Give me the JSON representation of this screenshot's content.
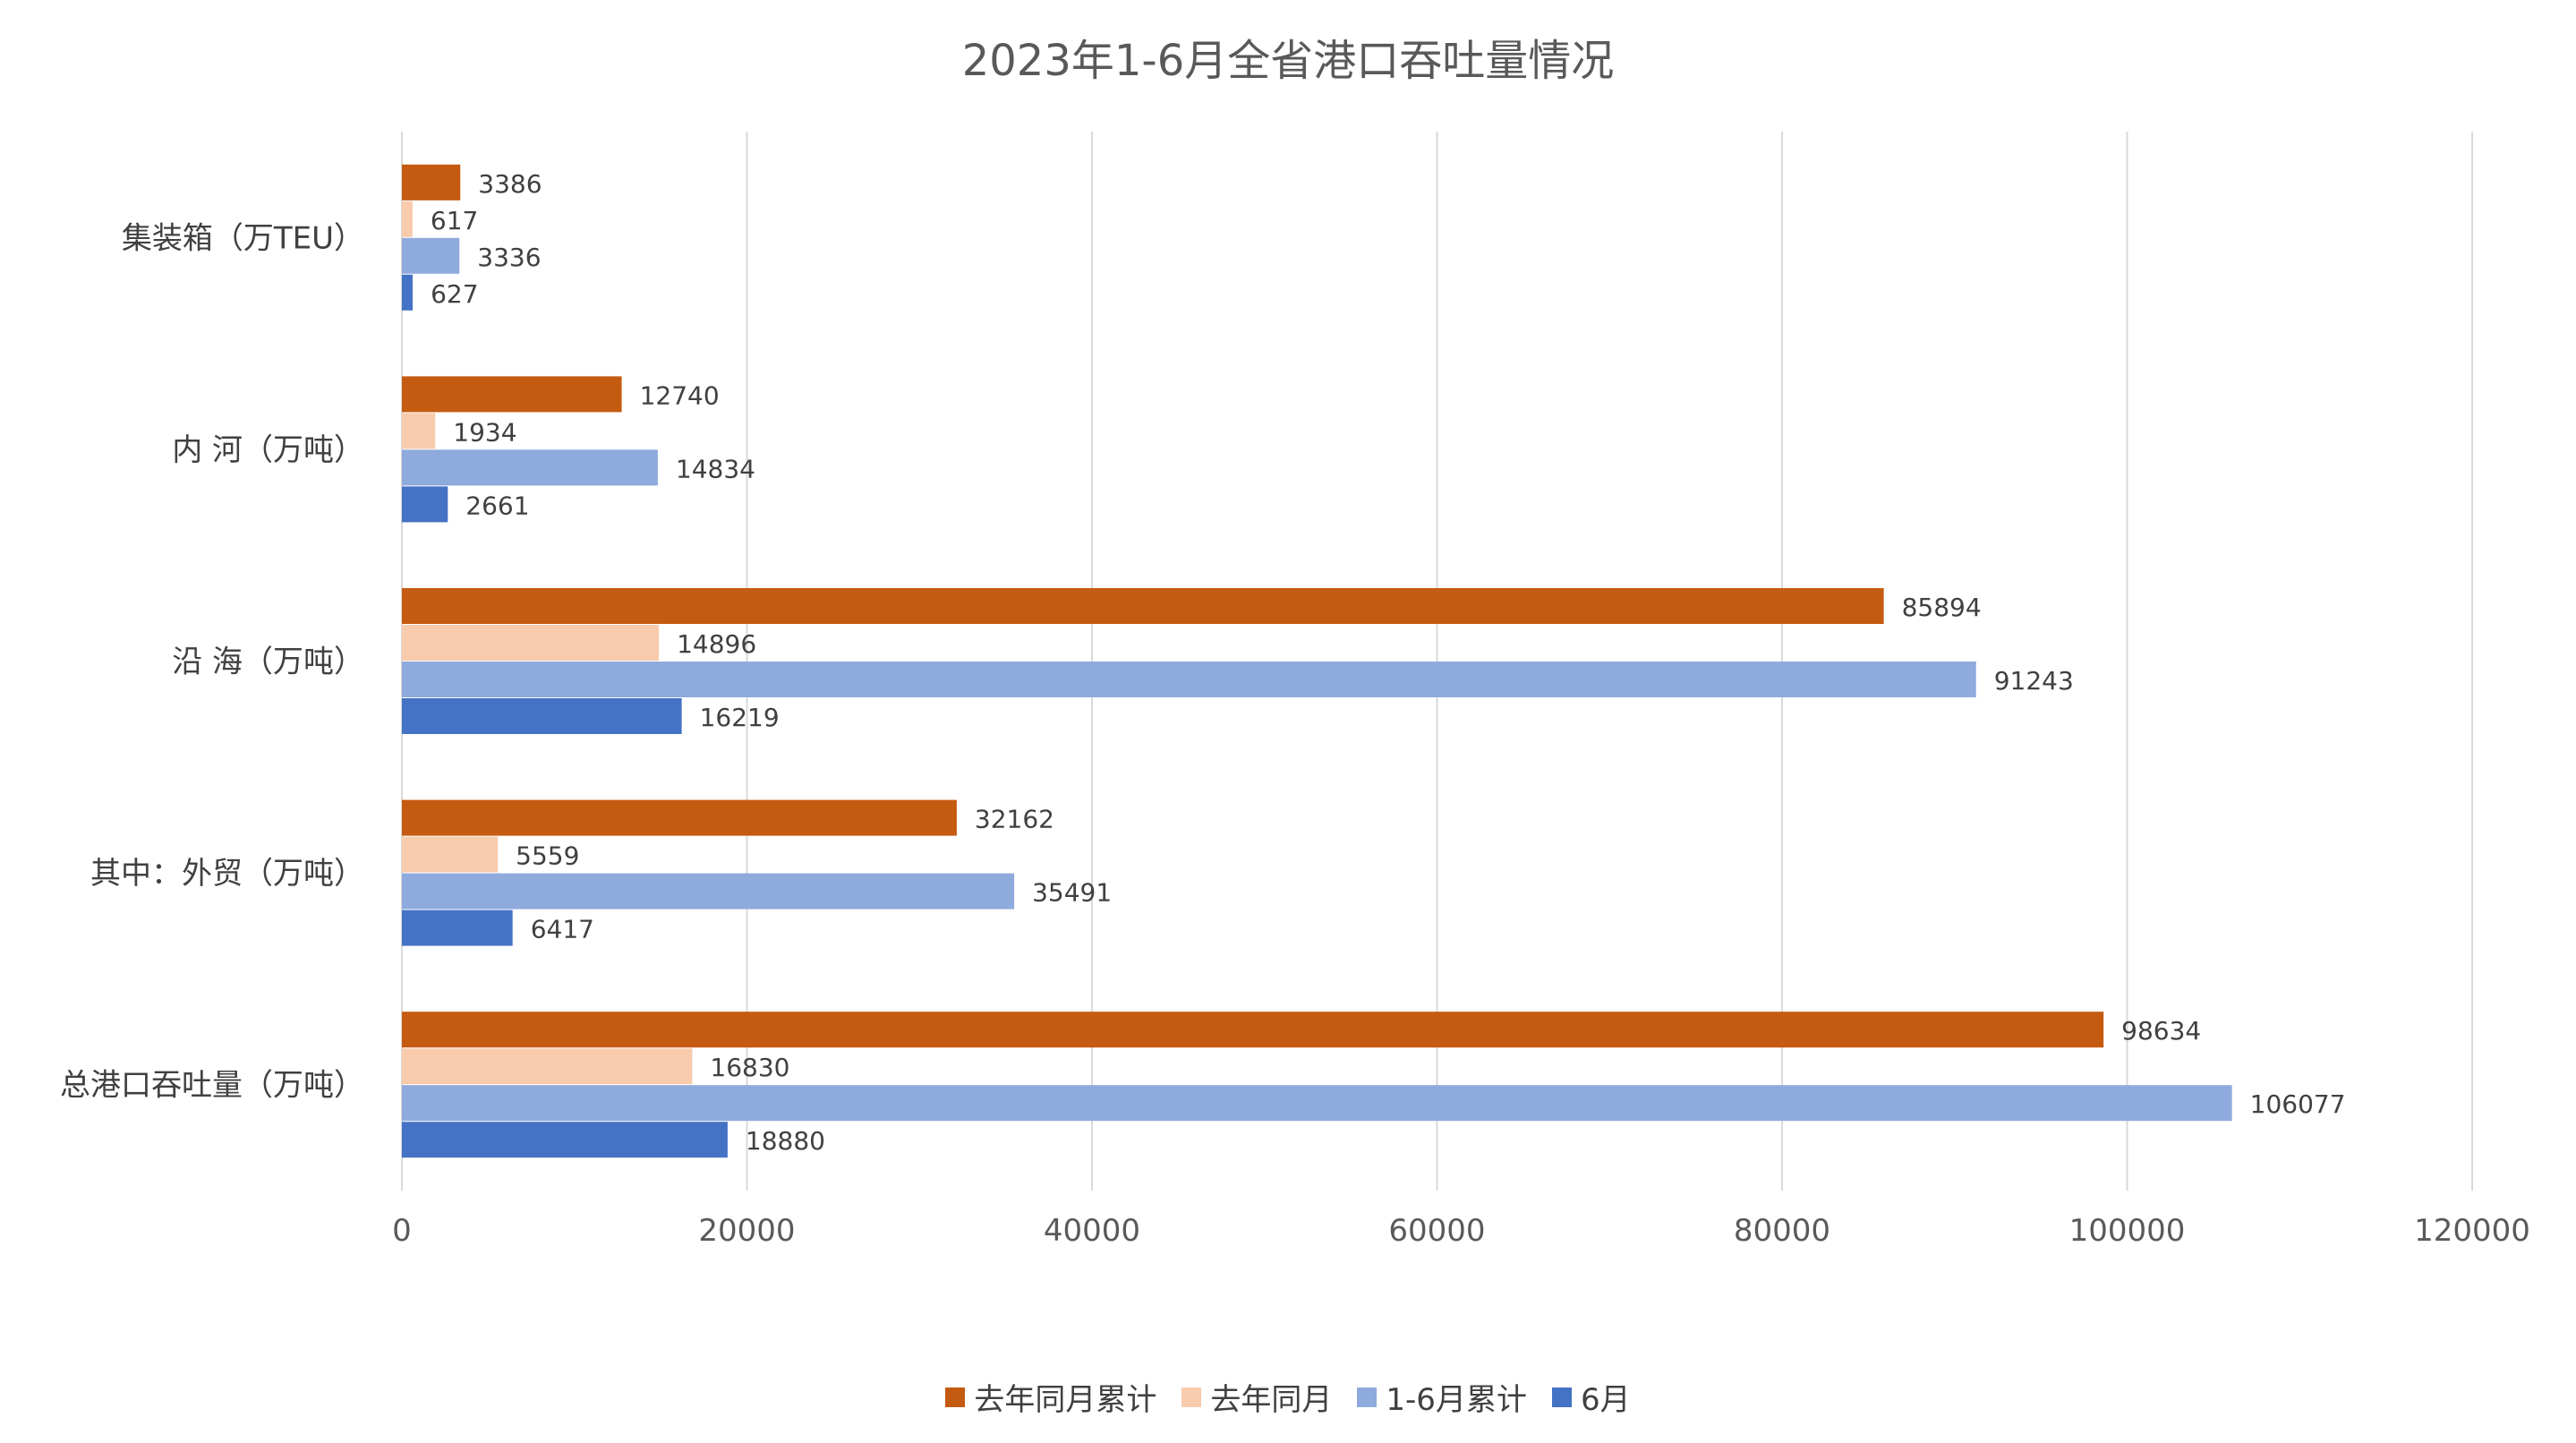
{
  "chart_data": {
    "type": "bar",
    "orientation": "horizontal",
    "title": "2023年1-6月全省港口吞吐量情况",
    "categories": [
      "集装箱（万TEU）",
      "内  河（万吨）",
      "沿  海（万吨）",
      "其中：外贸（万吨）",
      "总港口吞吐量（万吨）"
    ],
    "series": [
      {
        "name": "去年同月累计",
        "color": "#C55A11",
        "values": [
          3386,
          12740,
          85894,
          32162,
          98634
        ]
      },
      {
        "name": "去年同月",
        "color": "#F8CBAD",
        "values": [
          617,
          1934,
          14896,
          5559,
          16830
        ]
      },
      {
        "name": "1-6月累计",
        "color": "#8FAADC",
        "values": [
          3336,
          14834,
          91243,
          35491,
          106077
        ]
      },
      {
        "name": "6月",
        "color": "#4472C4",
        "values": [
          627,
          2661,
          16219,
          6417,
          18880
        ]
      }
    ],
    "xlim": [
      0,
      120000
    ],
    "xticks": [
      "0",
      "20000",
      "40000",
      "60000",
      "80000",
      "100000",
      "120000"
    ],
    "grid": true,
    "legend_position": "bottom",
    "data_labels": true
  }
}
